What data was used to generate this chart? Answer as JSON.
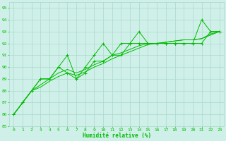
{
  "xlabel": "Humidité relative (%)",
  "xlim": [
    -0.5,
    23.5
  ],
  "ylim": [
    85,
    95.5
  ],
  "yticks": [
    85,
    86,
    87,
    88,
    89,
    90,
    91,
    92,
    93,
    94,
    95
  ],
  "xticks": [
    0,
    1,
    2,
    3,
    4,
    5,
    6,
    7,
    8,
    9,
    10,
    11,
    12,
    13,
    14,
    15,
    16,
    17,
    18,
    19,
    20,
    21,
    22,
    23
  ],
  "bg_color": "#cff0e8",
  "grid_color": "#aad8cc",
  "line_color": "#00bb00",
  "series1_x": [
    0,
    1,
    2,
    3,
    4,
    5,
    6,
    7,
    8,
    9,
    10,
    11,
    12,
    13,
    14,
    15,
    16,
    17,
    18,
    19,
    20,
    21,
    22,
    23
  ],
  "series1_y": [
    86.0,
    87.0,
    88.0,
    89.0,
    89.0,
    90.0,
    91.0,
    89.0,
    90.0,
    91.0,
    92.0,
    91.0,
    92.0,
    92.0,
    93.0,
    92.0,
    92.0,
    92.0,
    92.0,
    92.0,
    92.0,
    94.0,
    93.0,
    93.0
  ],
  "series2_x": [
    0,
    1,
    2,
    3,
    4,
    5,
    6,
    7,
    8,
    9,
    10,
    11,
    12,
    13,
    14,
    15,
    16,
    17,
    18,
    19,
    20,
    21,
    22,
    23
  ],
  "series2_y": [
    86.0,
    87.0,
    88.0,
    89.0,
    89.0,
    90.0,
    89.5,
    89.0,
    89.5,
    90.5,
    90.5,
    91.0,
    91.0,
    92.0,
    92.0,
    92.0,
    92.0,
    92.0,
    92.0,
    92.0,
    92.0,
    92.0,
    93.0,
    93.0
  ],
  "series3_x": [
    0,
    1,
    2,
    3,
    4,
    5,
    6,
    7,
    8,
    9,
    10,
    11,
    12,
    13,
    14,
    15,
    16,
    17,
    18,
    19,
    20,
    21,
    22,
    23
  ],
  "series3_y": [
    86.0,
    87.0,
    88.0,
    88.5,
    89.0,
    89.5,
    89.8,
    89.5,
    89.8,
    90.2,
    90.5,
    91.0,
    91.2,
    91.5,
    91.8,
    92.0,
    92.0,
    92.1,
    92.2,
    92.3,
    92.3,
    92.4,
    92.8,
    93.0
  ],
  "series4_x": [
    0,
    1,
    2,
    3,
    4,
    5,
    6,
    7,
    8,
    9,
    10,
    11,
    12,
    13,
    14,
    15,
    16,
    17,
    18,
    19,
    20,
    21,
    22,
    23
  ],
  "series4_y": [
    86.0,
    87.0,
    88.0,
    88.3,
    88.8,
    89.2,
    89.5,
    89.3,
    89.6,
    90.0,
    90.3,
    90.7,
    91.0,
    91.3,
    91.6,
    91.9,
    92.0,
    92.1,
    92.2,
    92.3,
    92.3,
    92.4,
    92.7,
    93.0
  ],
  "lw": 0.7,
  "marker_size": 2.5,
  "tick_fontsize": 4.5,
  "xlabel_fontsize": 5.5
}
